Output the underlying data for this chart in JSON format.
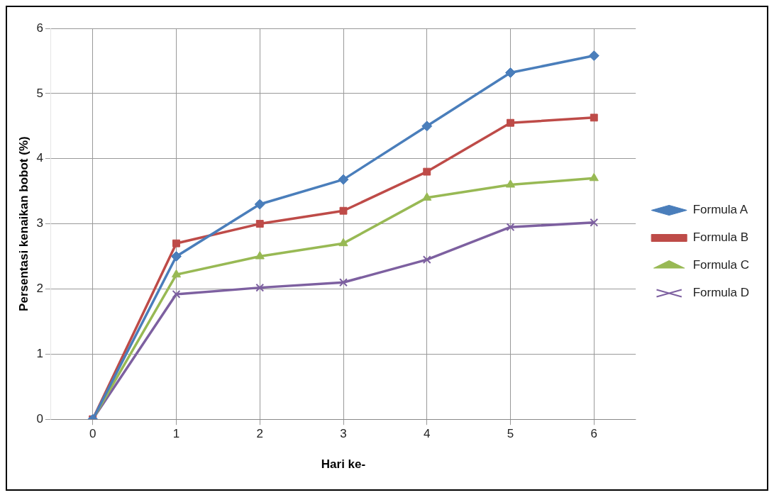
{
  "chart_data": {
    "type": "line",
    "xlabel": "Hari ke-",
    "ylabel": "Persentasi kenaikan bobot (%)",
    "categories": [
      "0",
      "1",
      "2",
      "3",
      "4",
      "5",
      "6"
    ],
    "ylim": [
      0,
      6
    ],
    "yticks": [
      0,
      1,
      2,
      3,
      4,
      5,
      6
    ],
    "grid": true,
    "legend": "right",
    "line_style": "solid",
    "series": [
      {
        "name": "Formula A",
        "color": "#4a7ebb",
        "marker": "diamond",
        "values": [
          0,
          2.5,
          3.3,
          3.68,
          4.5,
          5.32,
          5.58
        ]
      },
      {
        "name": "Formula B",
        "color": "#be4b48",
        "marker": "square",
        "values": [
          0,
          2.7,
          3.0,
          3.2,
          3.8,
          4.55,
          4.63
        ]
      },
      {
        "name": "Formula C",
        "color": "#98b954",
        "marker": "triangle",
        "values": [
          0,
          2.22,
          2.5,
          2.7,
          3.4,
          3.6,
          3.7
        ]
      },
      {
        "name": "Formula D",
        "color": "#7d60a0",
        "marker": "cross",
        "values": [
          0,
          1.92,
          2.02,
          2.1,
          2.45,
          2.95,
          3.02
        ]
      }
    ]
  }
}
